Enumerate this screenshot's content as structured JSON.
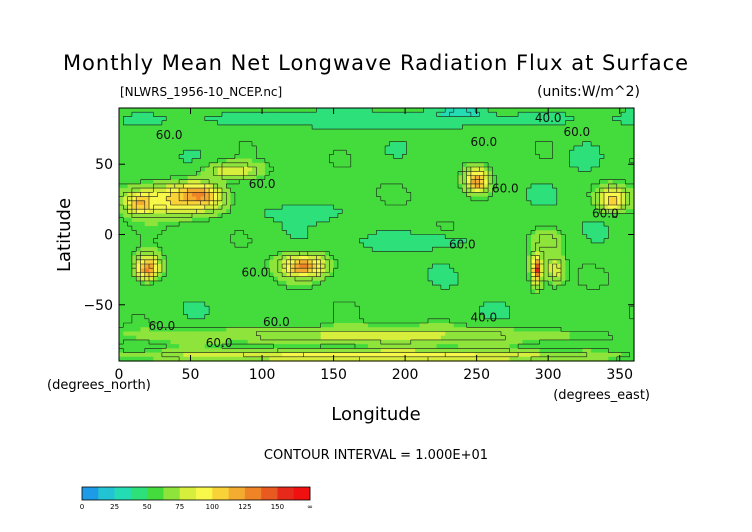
{
  "chart_data": {
    "type": "heatmap",
    "title": "Monthly Mean Net Longwave Radiation Flux at Surface",
    "file_label": "[NLWRS_1956-10_NCEP.nc]",
    "units_label": "(units:W/m^2)",
    "xlabel": "Longitude",
    "ylabel": "Latitude",
    "x_units_label": "(degrees_east)",
    "y_units_label": "(degrees_north)",
    "xlim": [
      0,
      360
    ],
    "ylim": [
      -90,
      90
    ],
    "x_ticks": [
      0,
      50,
      100,
      150,
      200,
      250,
      300,
      350
    ],
    "x_tick_labels": [
      "0",
      "50",
      "100",
      "150",
      "200",
      "250",
      "300",
      "350"
    ],
    "y_ticks": [
      50,
      0,
      -50
    ],
    "y_tick_labels": [
      "50",
      "0",
      "−50"
    ],
    "contour_interval_text": "CONTOUR INTERVAL = 1.000E+01",
    "contour_labels": [
      "40.0",
      "60.0",
      "60.0",
      "60.0",
      "60.0",
      "60.0",
      "60.0",
      "60.0",
      "60.0",
      "40.0",
      "60.0",
      "60.0",
      "60.0"
    ],
    "colorbar": {
      "tick_labels": [
        "0",
        "25",
        "50",
        "75",
        "100",
        "125",
        "150",
        "∞"
      ],
      "bins": [
        {
          "from": 0,
          "to": 12.5,
          "color": "#1e9be6"
        },
        {
          "from": 12.5,
          "to": 25,
          "color": "#22c3d3"
        },
        {
          "from": 25,
          "to": 37.5,
          "color": "#24dcb4"
        },
        {
          "from": 37.5,
          "to": 50,
          "color": "#2de07a"
        },
        {
          "from": 50,
          "to": 62.5,
          "color": "#44dc3c"
        },
        {
          "from": 62.5,
          "to": 75,
          "color": "#8ee43a"
        },
        {
          "from": 75,
          "to": 87.5,
          "color": "#d8ee3c"
        },
        {
          "from": 87.5,
          "to": 100,
          "color": "#f8f84a"
        },
        {
          "from": 100,
          "to": 112.5,
          "color": "#f8d236"
        },
        {
          "from": 112.5,
          "to": 125,
          "color": "#f4ac30"
        },
        {
          "from": 125,
          "to": 137.5,
          "color": "#ee8426"
        },
        {
          "from": 137.5,
          "to": 150,
          "color": "#e85a20"
        },
        {
          "from": 150,
          "to": 162.5,
          "color": "#e52a1c"
        },
        {
          "from": 162.5,
          "to": 175,
          "color": "#f01010"
        }
      ]
    },
    "background_value": 55,
    "regions": [
      {
        "name": "southern-ocean-band",
        "lon_center": 180,
        "lat_center": -72,
        "lon_radius": 185,
        "lat_radius": 8,
        "value": 78
      },
      {
        "name": "antarctic-edge",
        "lon_center": 180,
        "lat_center": -86,
        "lon_radius": 185,
        "lat_radius": 5,
        "value": 95
      },
      {
        "name": "arctic-band",
        "lon_center": 180,
        "lat_center": 82,
        "lon_radius": 185,
        "lat_radius": 7,
        "value": 40
      },
      {
        "name": "arctic-cold-cell",
        "lon_center": 240,
        "lat_center": 87,
        "lon_radius": 18,
        "lat_radius": 3,
        "value": 15
      },
      {
        "name": "north-ocean-cool-1",
        "lon_center": 210,
        "lat_center": -5,
        "lon_radius": 45,
        "lat_radius": 7,
        "value": 40
      },
      {
        "name": "north-ocean-cool-2",
        "lon_center": 130,
        "lat_center": 15,
        "lon_radius": 30,
        "lat_radius": 7,
        "value": 42
      },
      {
        "name": "north-ocean-cool-3",
        "lon_center": 325,
        "lat_center": 55,
        "lon_radius": 15,
        "lat_radius": 12,
        "value": 40
      },
      {
        "name": "sahara-arabia",
        "lon_center": 40,
        "lat_center": 25,
        "lon_radius": 40,
        "lat_radius": 14,
        "value": 100
      },
      {
        "name": "sahara-core",
        "lon_center": 55,
        "lat_center": 28,
        "lon_radius": 16,
        "lat_radius": 9,
        "value": 130
      },
      {
        "name": "sahara-west",
        "lon_center": 15,
        "lat_center": 22,
        "lon_radius": 10,
        "lat_radius": 8,
        "value": 120
      },
      {
        "name": "central-asia",
        "lon_center": 80,
        "lat_center": 45,
        "lon_radius": 25,
        "lat_radius": 8,
        "value": 85
      },
      {
        "name": "north-america-west",
        "lon_center": 250,
        "lat_center": 40,
        "lon_radius": 12,
        "lat_radius": 12,
        "value": 100
      },
      {
        "name": "north-america-core",
        "lon_center": 250,
        "lat_center": 37,
        "lon_radius": 6,
        "lat_radius": 6,
        "value": 125
      },
      {
        "name": "sw-north-america",
        "lon_center": 345,
        "lat_center": 25,
        "lon_radius": 12,
        "lat_radius": 10,
        "value": 110
      },
      {
        "name": "southern-africa",
        "lon_center": 20,
        "lat_center": -23,
        "lon_radius": 12,
        "lat_radius": 12,
        "value": 105
      },
      {
        "name": "southern-africa-core",
        "lon_center": 20,
        "lat_center": -25,
        "lon_radius": 6,
        "lat_radius": 6,
        "value": 130
      },
      {
        "name": "australia",
        "lon_center": 130,
        "lat_center": -22,
        "lon_radius": 20,
        "lat_radius": 10,
        "value": 105
      },
      {
        "name": "australia-core",
        "lon_center": 128,
        "lat_center": -23,
        "lon_radius": 10,
        "lat_radius": 5,
        "value": 130
      },
      {
        "name": "andes-atacama",
        "lon_center": 292,
        "lat_center": -25,
        "lon_radius": 5,
        "lat_radius": 15,
        "value": 115
      },
      {
        "name": "andes-core",
        "lon_center": 292,
        "lat_center": -25,
        "lon_radius": 2,
        "lat_radius": 6,
        "value": 160
      },
      {
        "name": "south-america-east",
        "lon_center": 305,
        "lat_center": -25,
        "lon_radius": 8,
        "lat_radius": 12,
        "value": 85
      },
      {
        "name": "south-america-north",
        "lon_center": 300,
        "lat_center": -5,
        "lon_radius": 12,
        "lat_radius": 10,
        "value": 75
      }
    ]
  }
}
